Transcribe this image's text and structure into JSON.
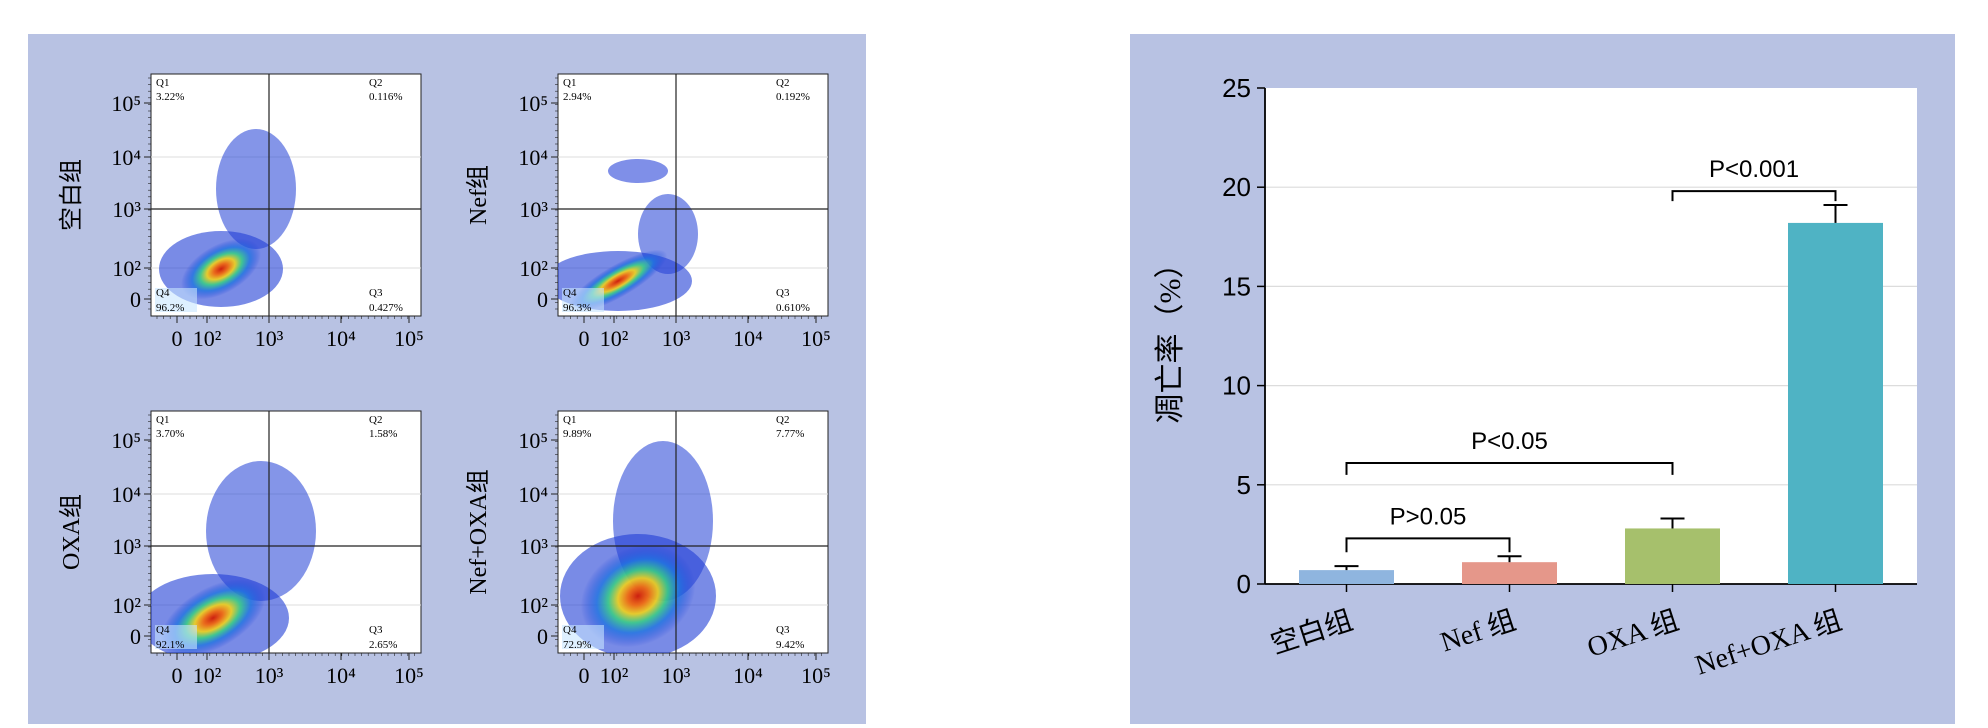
{
  "chart_data": [
    {
      "type": "scatter",
      "subtype": "flow-cytometry-quadrant",
      "axis_ticks": [
        "0",
        "10²",
        "10³",
        "10⁴",
        "10⁵"
      ],
      "quadrant_labels": [
        "Q1",
        "Q2",
        "Q3",
        "Q4"
      ],
      "plots": [
        {
          "group": "空白组",
          "Q1": "3.22%",
          "Q2": "0.116%",
          "Q3": "0.427%",
          "Q4": "96.2%"
        },
        {
          "group": "Nef组",
          "Q1": "2.94%",
          "Q2": "0.192%",
          "Q3": "0.610%",
          "Q4": "96.3%"
        },
        {
          "group": "OXA组",
          "Q1": "3.70%",
          "Q2": "1.58%",
          "Q3": "2.65%",
          "Q4": "92.1%"
        },
        {
          "group": "Nef+OXA组",
          "Q1": "9.89%",
          "Q2": "7.77%",
          "Q3": "9.42%",
          "Q4": "72.9%"
        }
      ]
    },
    {
      "type": "bar",
      "categories": [
        "空白组",
        "Nef 组",
        "OXA 组",
        "Nef+OXA 组"
      ],
      "values": [
        0.7,
        1.1,
        2.8,
        18.2
      ],
      "errors": [
        0.2,
        0.3,
        0.5,
        0.9
      ],
      "colors": [
        "#8fb5df",
        "#e5978a",
        "#a6c06c",
        "#4fb3c4"
      ],
      "ylabel": "凋亡率（%）",
      "ylim": [
        0,
        25
      ],
      "yticks": [
        0,
        5,
        10,
        15,
        20,
        25
      ],
      "grid": true,
      "comparisons": [
        {
          "from": 0,
          "to": 1,
          "label": "P>0.05"
        },
        {
          "from": 0,
          "to": 2,
          "label": "P<0.05"
        },
        {
          "from": 2,
          "to": 3,
          "label": "P<0.001"
        }
      ]
    }
  ]
}
